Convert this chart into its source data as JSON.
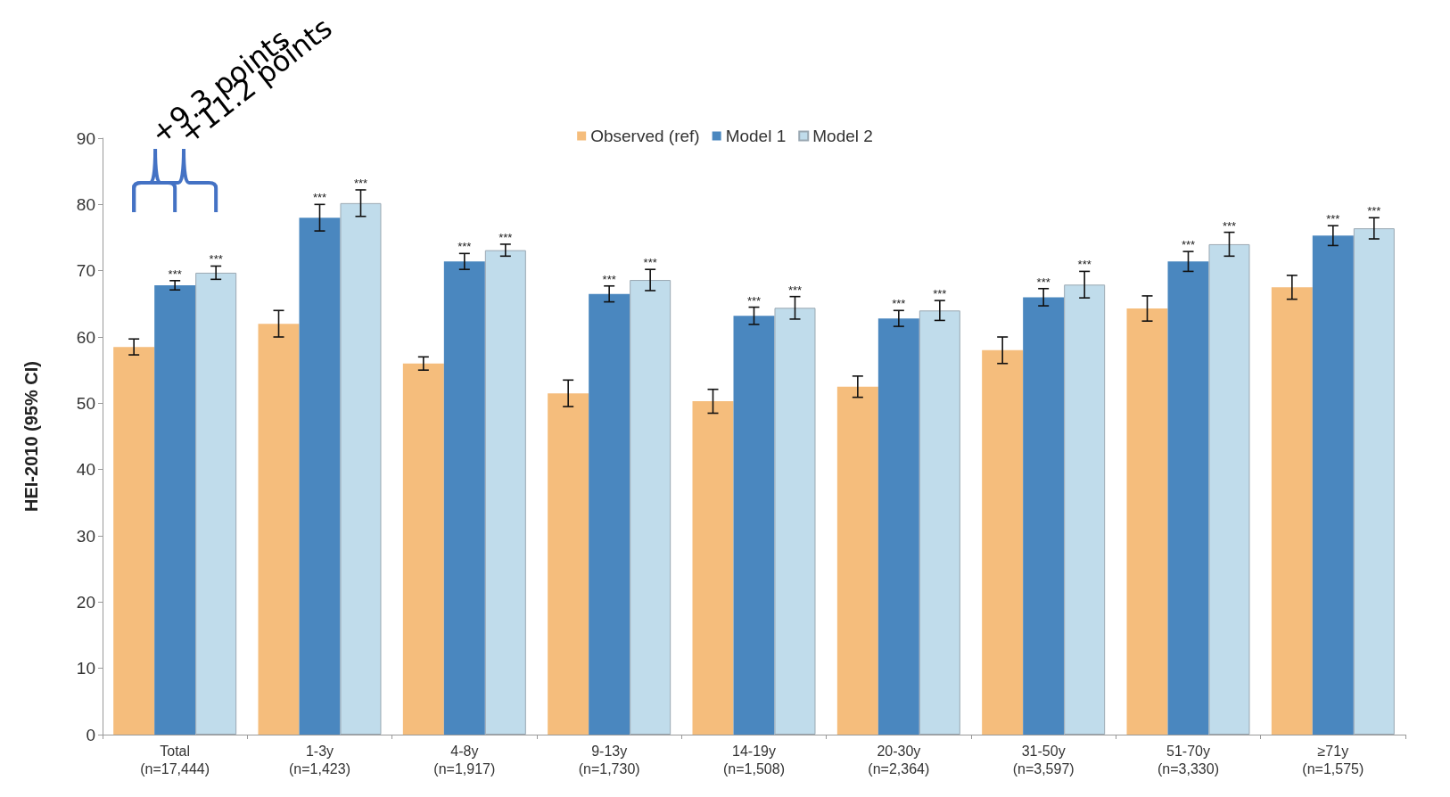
{
  "chart_data": {
    "type": "bar",
    "ylabel": "HEI-2010 (95% CI)",
    "categories": [
      "Total\n(n=17,444)",
      "1-3y\n(n=1,423)",
      "4-8y\n(n=1,917)",
      "9-13y\n(n=1,730)",
      "14-19y\n(n=1,508)",
      "20-30y\n(n=2,364)",
      "31-50y\n(n=3,597)",
      "51-70y\n(n=3,330)",
      "≥71y\n(n=1,575)"
    ],
    "series": [
      {
        "name": "Observed (ref)",
        "color": "#f5bd7c",
        "values": [
          58.5,
          62,
          56,
          51.5,
          50.3,
          52.5,
          58,
          64.3,
          67.5
        ],
        "errors": [
          1.2,
          2,
          1,
          2,
          1.8,
          1.6,
          2,
          1.9,
          1.8
        ]
      },
      {
        "name": "Model 1",
        "color": "#4a87bf",
        "values": [
          67.8,
          78,
          71.4,
          66.5,
          63.2,
          62.8,
          66,
          71.4,
          75.3
        ],
        "errors": [
          0.7,
          2,
          1.2,
          1.2,
          1.3,
          1.2,
          1.3,
          1.5,
          1.5
        ],
        "value_labels": [
          "***",
          "***",
          "***",
          "***",
          "***",
          "***",
          "***",
          "***",
          "***"
        ]
      },
      {
        "name": "Model 2",
        "color": "#c0dceb",
        "values": [
          69.7,
          80.2,
          73.1,
          68.6,
          64.4,
          64,
          67.9,
          74,
          76.4
        ],
        "errors": [
          1,
          2,
          0.9,
          1.6,
          1.7,
          1.5,
          2,
          1.8,
          1.6
        ],
        "value_labels": [
          "***",
          "***",
          "***",
          "***",
          "***",
          "***",
          "***",
          "***",
          "***"
        ]
      }
    ],
    "ylim": [
      0,
      90
    ],
    "yticks": [
      0,
      10,
      20,
      30,
      40,
      50,
      60,
      70,
      80,
      90
    ],
    "grid": false,
    "legend": "top",
    "annotations": [
      "+9.3 points",
      "+11.2 points"
    ]
  }
}
